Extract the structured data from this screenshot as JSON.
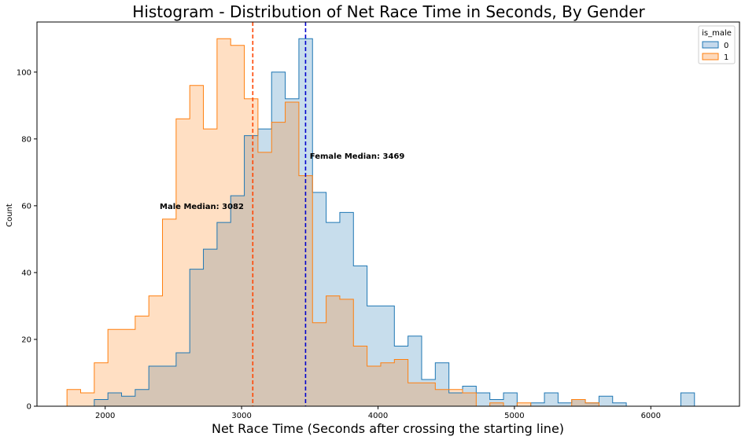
{
  "chart_data": {
    "type": "histogram",
    "title": "Histogram - Distribution of Net Race Time in Seconds, By Gender",
    "xlabel": "Net Race Time (Seconds after crossing the starting line)",
    "ylabel": "Count",
    "xlim": [
      1500,
      6650
    ],
    "ylim": [
      0,
      115
    ],
    "xticks": [
      2000,
      3000,
      4000,
      5000,
      6000
    ],
    "yticks": [
      0,
      20,
      40,
      60,
      80,
      100
    ],
    "bin_start": 1720,
    "bin_width": 100,
    "legend": {
      "title": "is_male",
      "placement": "top-right"
    },
    "series": [
      {
        "name": "0",
        "color": "#1f77b4",
        "fill": "#c5d9ec",
        "counts": [
          0,
          0,
          2,
          4,
          3,
          5,
          12,
          12,
          16,
          41,
          47,
          55,
          63,
          81,
          83,
          100,
          92,
          110,
          64,
          55,
          58,
          42,
          30,
          30,
          18,
          21,
          8,
          13,
          4,
          6,
          4,
          2,
          4,
          0,
          1,
          4,
          1,
          2,
          1,
          3,
          1,
          0,
          0,
          0,
          0,
          4
        ]
      },
      {
        "name": "1",
        "color": "#ff7f0e",
        "fill": "#fdd9bc",
        "counts": [
          5,
          4,
          13,
          23,
          23,
          27,
          33,
          56,
          86,
          96,
          83,
          110,
          108,
          92,
          76,
          85,
          91,
          69,
          25,
          33,
          32,
          18,
          12,
          13,
          14,
          7,
          7,
          5,
          5,
          4,
          0,
          1,
          0,
          1,
          0,
          0,
          0,
          2,
          1,
          0,
          0,
          0,
          0,
          0,
          0,
          0
        ]
      }
    ],
    "medians": [
      {
        "label": "Male Median: 3082",
        "value": 3082,
        "color": "#ff4500",
        "label_at": [
          2400,
          60
        ]
      },
      {
        "label": "Female Median: 3469",
        "value": 3469,
        "color": "#0000cd",
        "label_at": [
          3500,
          75
        ]
      }
    ]
  }
}
